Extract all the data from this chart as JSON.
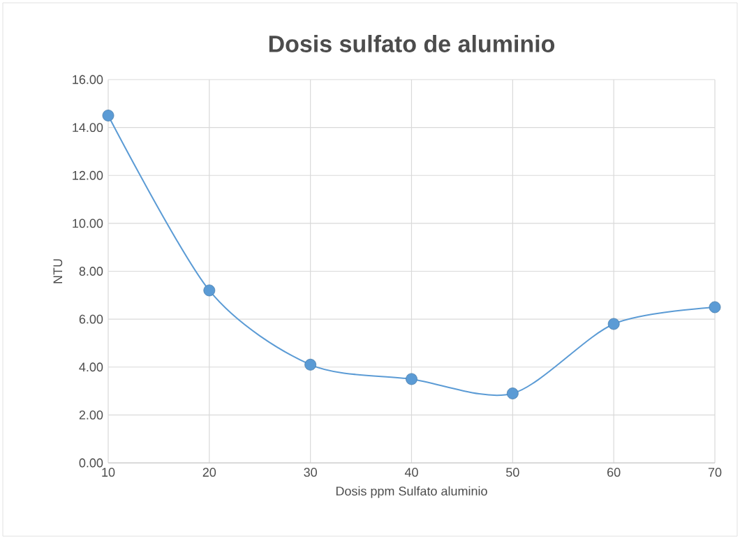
{
  "chart_data": {
    "type": "line",
    "title": "Dosis sulfato de aluminio",
    "xlabel": "Dosis ppm Sulfato aluminio",
    "ylabel": "NTU",
    "x": [
      10,
      20,
      30,
      40,
      50,
      60,
      70
    ],
    "series": [
      {
        "color": "#5b9bd5",
        "values": [
          14.5,
          7.2,
          4.1,
          3.5,
          2.9,
          5.8,
          6.5
        ]
      }
    ],
    "xlim": [
      10,
      70
    ],
    "xticks": [
      10,
      20,
      30,
      40,
      50,
      60,
      70
    ],
    "ylim": [
      0,
      16
    ],
    "yticks": [
      {
        "value": 0,
        "label": "0.00"
      },
      {
        "value": 2,
        "label": "2.00"
      },
      {
        "value": 4,
        "label": "4.00"
      },
      {
        "value": 6,
        "label": "6.00"
      },
      {
        "value": 8,
        "label": "8.00"
      },
      {
        "value": 10,
        "label": "10.00"
      },
      {
        "value": 12,
        "label": "12.00"
      },
      {
        "value": 14,
        "label": "14.00"
      },
      {
        "value": 16,
        "label": "16.00"
      }
    ],
    "grid": true,
    "marker": "circle",
    "line_style": "solid"
  }
}
